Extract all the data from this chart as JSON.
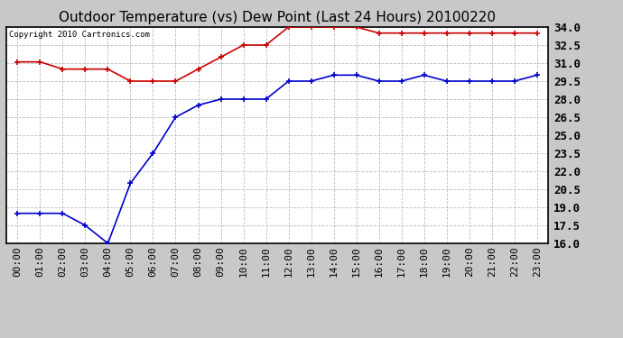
{
  "title": "Outdoor Temperature (vs) Dew Point (Last 24 Hours) 20100220",
  "copyright_text": "Copyright 2010 Cartronics.com",
  "x_labels": [
    "00:00",
    "01:00",
    "02:00",
    "03:00",
    "04:00",
    "05:00",
    "06:00",
    "07:00",
    "08:00",
    "09:00",
    "10:00",
    "11:00",
    "12:00",
    "13:00",
    "14:00",
    "15:00",
    "16:00",
    "17:00",
    "18:00",
    "19:00",
    "20:00",
    "21:00",
    "22:00",
    "23:00"
  ],
  "temp_values": [
    31.1,
    31.1,
    30.5,
    30.5,
    30.5,
    29.5,
    29.5,
    29.5,
    30.5,
    31.5,
    32.5,
    32.5,
    34.0,
    34.0,
    34.0,
    34.0,
    33.5,
    33.5,
    33.5,
    33.5,
    33.5,
    33.5,
    33.5,
    33.5
  ],
  "dew_values": [
    18.5,
    18.5,
    18.5,
    17.5,
    16.0,
    21.0,
    23.5,
    26.5,
    27.5,
    28.0,
    28.0,
    28.0,
    29.5,
    29.5,
    30.0,
    30.0,
    29.5,
    29.5,
    30.0,
    29.5,
    29.5,
    29.5,
    29.5,
    30.0
  ],
  "temp_color": "#cc0000",
  "dew_color": "#0000cc",
  "background_color": "#c8c8c8",
  "plot_background": "#ffffff",
  "grid_color": "#bbbbbb",
  "ylim": [
    16.0,
    34.0
  ],
  "yticks": [
    16.0,
    17.5,
    19.0,
    20.5,
    22.0,
    23.5,
    25.0,
    26.5,
    28.0,
    29.5,
    31.0,
    32.5,
    34.0
  ],
  "marker": "+",
  "markersize": 5,
  "linewidth": 1.2,
  "title_fontsize": 11,
  "tick_fontsize": 8,
  "ylabel_fontsize": 9,
  "copyright_fontsize": 6.5
}
